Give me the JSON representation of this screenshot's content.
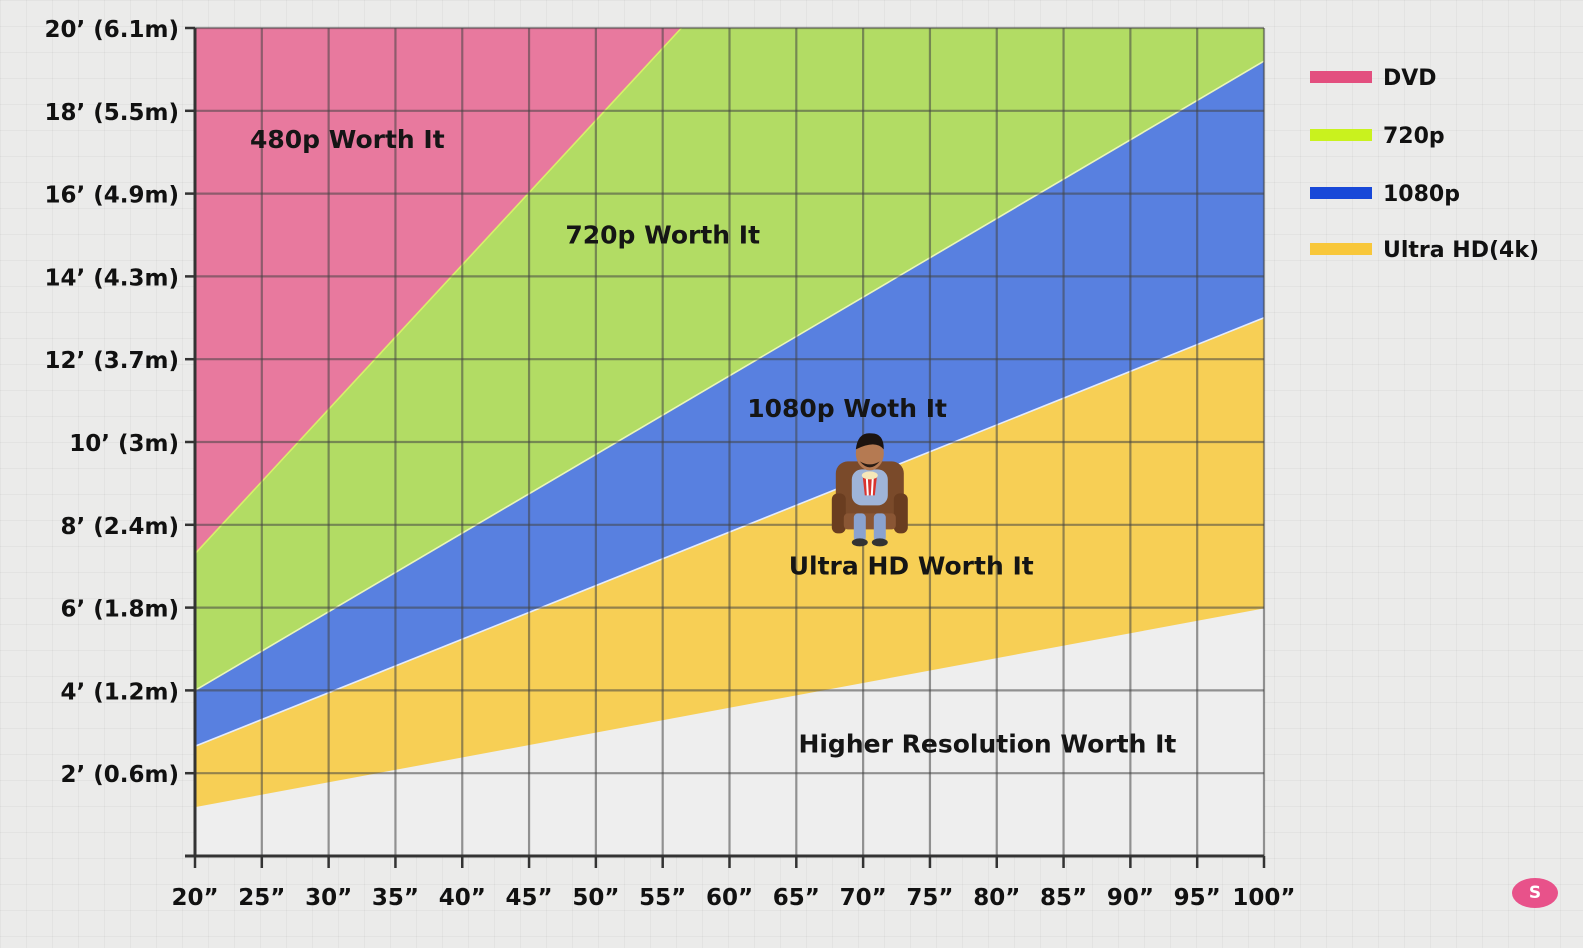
{
  "chart_data": {
    "type": "area",
    "xlabel": "",
    "ylabel": "",
    "xlim": [
      20,
      100
    ],
    "ylim": [
      0,
      20
    ],
    "grid": true,
    "x_ticks": [
      20,
      25,
      30,
      35,
      40,
      45,
      50,
      55,
      60,
      65,
      70,
      75,
      80,
      85,
      90,
      95,
      100
    ],
    "x_tick_labels": [
      "20”",
      "25”",
      "30”",
      "35”",
      "40”",
      "45”",
      "50”",
      "55”",
      "60”",
      "65”",
      "70”",
      "75”",
      "80”",
      "85”",
      "90”",
      "95”",
      "100”"
    ],
    "y_ticks": [
      2,
      4,
      6,
      8,
      10,
      12,
      14,
      16,
      18,
      20
    ],
    "y_tick_labels": [
      "2’ (0.6m)",
      "4’ (1.2m)",
      "6’ (1.8m)",
      "8’ (2.4m)",
      "10’ (3m)",
      "12’ (3.7m)",
      "14’ (4.3m)",
      "16’ (4.9m)",
      "18’ (5.5m)",
      "20’ (6.1m)"
    ],
    "series": [
      {
        "name": "DVD",
        "color": "#e8799e",
        "legend_color": "#e34f7f",
        "x": [
          20,
          56.4
        ],
        "y": [
          7.3,
          20
        ]
      },
      {
        "name": "720p",
        "color": "#b2dc64",
        "legend_color": "#c9f21e",
        "x": [
          20,
          100
        ],
        "y": [
          4.0,
          19.2
        ]
      },
      {
        "name": "1080p",
        "color": "#5880e0",
        "legend_color": "#1848d8",
        "x": [
          20,
          100
        ],
        "y": [
          2.65,
          13.0
        ]
      },
      {
        "name": "Ultra HD(4k)",
        "color": "#f7cf55",
        "legend_color": "#f8c73a",
        "x": [
          20,
          100
        ],
        "y": [
          1.2,
          6.0
        ]
      }
    ],
    "zone_labels": [
      {
        "text": "480p Worth It",
        "x": 31.4,
        "y": 17.1
      },
      {
        "text": "720p Worth It",
        "x": 55.0,
        "y": 14.8
      },
      {
        "text": "1080p Woth It",
        "x": 68.8,
        "y": 10.6
      },
      {
        "text": "Ultra HD Worth It",
        "x": 73.6,
        "y": 6.8
      },
      {
        "text": "Higher Resolution Worth It",
        "x": 79.3,
        "y": 2.5
      }
    ],
    "legend_position": "right"
  },
  "figure": {
    "icon": "person-on-couch-with-popcorn-icon",
    "at_x": 70.5,
    "at_y": 9.0
  },
  "corner_badge": {
    "label": "S",
    "color": "#e8528a"
  }
}
